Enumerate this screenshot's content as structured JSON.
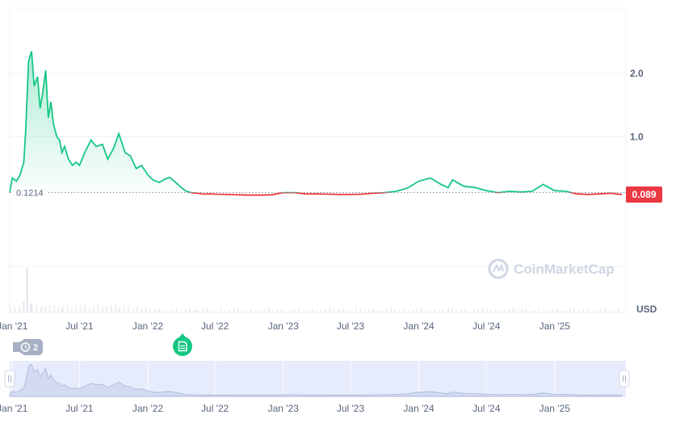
{
  "chart_data": {
    "type": "line",
    "currency": "USD",
    "watermark": "CoinMarketCap",
    "x": [
      "2020-12-25",
      "2021-01-01",
      "2021-01-12",
      "2021-01-22",
      "2021-02-01",
      "2021-02-06",
      "2021-02-14",
      "2021-02-22",
      "2021-03-01",
      "2021-03-10",
      "2021-03-17",
      "2021-03-24",
      "2021-04-01",
      "2021-04-08",
      "2021-04-15",
      "2021-04-22",
      "2021-05-01",
      "2021-05-08",
      "2021-05-15",
      "2021-05-22",
      "2021-06-01",
      "2021-06-12",
      "2021-06-22",
      "2021-07-01",
      "2021-07-15",
      "2021-08-01",
      "2021-08-15",
      "2021-09-01",
      "2021-09-15",
      "2021-10-01",
      "2021-10-15",
      "2021-11-01",
      "2021-11-15",
      "2021-12-01",
      "2021-12-15",
      "2022-01-01",
      "2022-01-15",
      "2022-02-01",
      "2022-02-15",
      "2022-03-01",
      "2022-03-15",
      "2022-04-01",
      "2022-04-15",
      "2022-05-01",
      "2022-05-15",
      "2022-06-01",
      "2022-06-15",
      "2022-07-01",
      "2022-08-01",
      "2022-09-01",
      "2022-10-01",
      "2022-11-01",
      "2022-12-01",
      "2023-01-01",
      "2023-02-01",
      "2023-03-01",
      "2023-04-01",
      "2023-05-01",
      "2023-06-01",
      "2023-07-01",
      "2023-08-01",
      "2023-09-01",
      "2023-10-01",
      "2023-11-01",
      "2023-12-01",
      "2024-01-01",
      "2024-02-01",
      "2024-03-01",
      "2024-03-20",
      "2024-04-01",
      "2024-05-01",
      "2024-06-01",
      "2024-07-01",
      "2024-08-01",
      "2024-09-01",
      "2024-10-01",
      "2024-11-01",
      "2024-12-01",
      "2025-01-01",
      "2025-02-01",
      "2025-03-01",
      "2025-04-01",
      "2025-05-01",
      "2025-06-01",
      "2025-07-01"
    ],
    "values": [
      0.12,
      0.35,
      0.3,
      0.4,
      0.6,
      1.1,
      2.2,
      2.35,
      1.8,
      1.95,
      1.45,
      1.7,
      2.05,
      1.3,
      1.55,
      1.2,
      1.0,
      0.95,
      0.75,
      0.85,
      0.65,
      0.55,
      0.6,
      0.55,
      0.75,
      0.95,
      0.85,
      0.88,
      0.65,
      0.82,
      1.05,
      0.75,
      0.7,
      0.5,
      0.55,
      0.4,
      0.32,
      0.28,
      0.33,
      0.36,
      0.29,
      0.2,
      0.14,
      0.115,
      0.11,
      0.095,
      0.1,
      0.095,
      0.09,
      0.085,
      0.08,
      0.08,
      0.085,
      0.12,
      0.12,
      0.1,
      0.1,
      0.095,
      0.09,
      0.09,
      0.095,
      0.11,
      0.12,
      0.14,
      0.19,
      0.3,
      0.35,
      0.25,
      0.2,
      0.32,
      0.22,
      0.2,
      0.15,
      0.12,
      0.14,
      0.13,
      0.14,
      0.25,
      0.15,
      0.14,
      0.1,
      0.09,
      0.1,
      0.11,
      0.089
    ],
    "reference_value": 0.1214,
    "reference_label": "0.1214",
    "current_price_label": "0.089",
    "y_ticks": [
      {
        "value": 1.0,
        "label": "1.0"
      },
      {
        "value": 2.0,
        "label": "2.0"
      }
    ],
    "ylabel": "USD",
    "x_ticks": [
      "Jan '21",
      "Jul '21",
      "Jan '22",
      "Jul '22",
      "Jan '23",
      "Jul '23",
      "Jan '24",
      "Jul '24",
      "Jan '25"
    ],
    "x_tick_dates": [
      "2021-01-01",
      "2021-07-01",
      "2022-01-01",
      "2022-07-01",
      "2023-01-01",
      "2023-07-01",
      "2024-01-01",
      "2024-07-01",
      "2025-01-01"
    ],
    "volume_bars": [
      {
        "x": "2021-02-10",
        "value": 1.0
      },
      {
        "x": "2021-02-01",
        "value": 0.25
      },
      {
        "x": "2021-02-20",
        "value": 0.2
      },
      {
        "x": "2021-03-20",
        "value": 0.12
      },
      {
        "x": "2021-05-15",
        "value": 0.1
      },
      {
        "x": "2021-10-15",
        "value": 0.08
      },
      {
        "x": "2022-05-10",
        "value": 0.06
      },
      {
        "x": "2024-03-20",
        "value": 0.08
      }
    ],
    "colors": {
      "up": "#16c784",
      "down": "#ea3943",
      "area": "#16c784",
      "price_badge": "#ea3943"
    },
    "annotations": [
      {
        "x": "2021-01-01",
        "icon": "clock-icon",
        "label": "2",
        "color": "#a6b0c3"
      },
      {
        "x": "2022-05-01",
        "icon": "document-icon",
        "label": "",
        "color": "#16c784"
      }
    ],
    "grid": true
  },
  "navigator": {
    "x_ticks": [
      "Jan '21",
      "Jul '21",
      "Jan '22",
      "Jul '22",
      "Jan '23",
      "Jul '23",
      "Jan '24",
      "Jul '24",
      "Jan '25"
    ],
    "handle_left_icon": "drag-handle-icon",
    "handle_right_icon": "drag-handle-icon"
  }
}
